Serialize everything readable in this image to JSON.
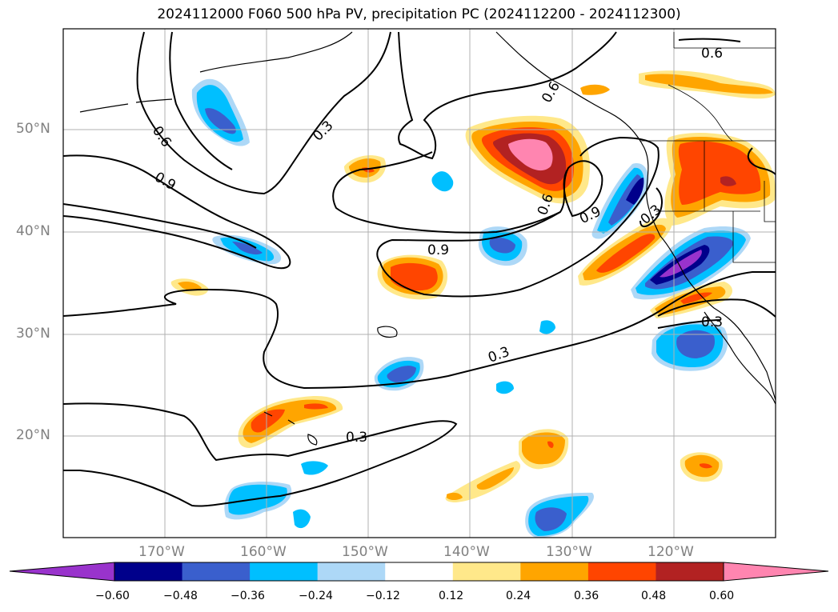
{
  "title": "2024112000 F060 500 hPa PV, precipitation PC (2024112200 - 2024112300)",
  "lon_labels": [
    "170°W",
    "160°W",
    "150°W",
    "140°W",
    "130°W",
    "120°W"
  ],
  "lat_labels": [
    "50°N",
    "40°N",
    "30°N",
    "20°N"
  ],
  "contour_labels": [
    "0.6",
    "0.3",
    "0.9",
    "0.9",
    "0.6",
    "0.9",
    "0.3",
    "0.3",
    "0.3",
    "0.6",
    "0.3",
    "0.6"
  ],
  "colorbar": {
    "ticks": [
      "−0.60",
      "−0.48",
      "−0.36",
      "−0.24",
      "−0.12",
      "0.12",
      "0.24",
      "0.36",
      "0.48",
      "0.60"
    ],
    "colors": [
      "#9933cc",
      "#00008b",
      "#3a5fcd",
      "#00bfff",
      "#add8f7",
      "#ffffff",
      "#ffe88a",
      "#ffa500",
      "#ff4500",
      "#b22222",
      "#ff85b0"
    ]
  }
}
